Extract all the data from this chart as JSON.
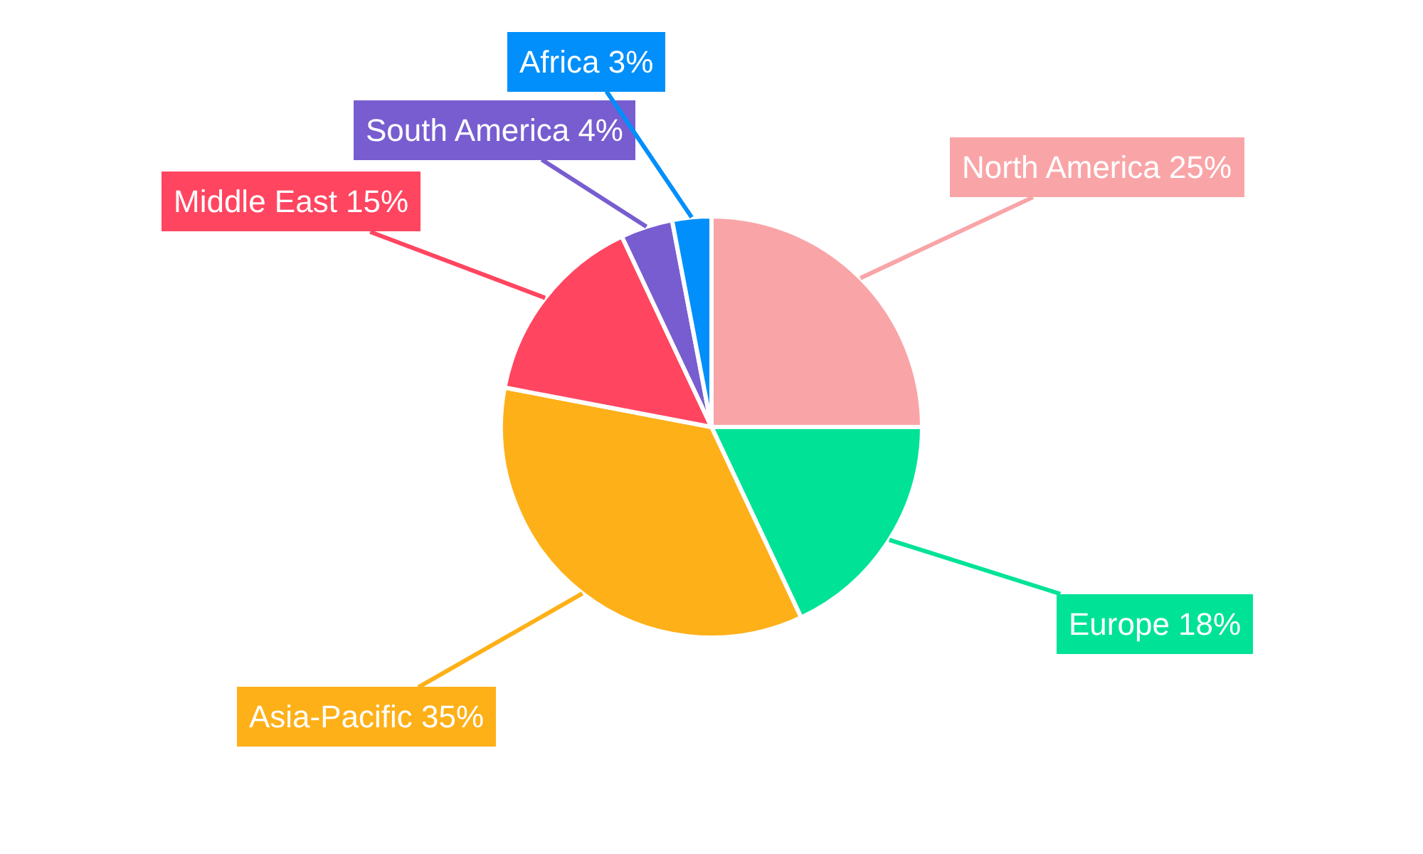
{
  "chart_data": {
    "type": "pie",
    "categories": [
      "North America",
      "Europe",
      "Asia-Pacific",
      "Middle East",
      "South America",
      "Africa"
    ],
    "values": [
      25,
      18,
      35,
      15,
      4,
      3
    ],
    "value_labels": [
      "25%",
      "18%",
      "35%",
      "15%",
      "4%",
      "3%"
    ],
    "colors": [
      "#f9a5a8",
      "#00e396",
      "#feb019",
      "#ff4560",
      "#775dd0",
      "#008ffb"
    ],
    "legend": false
  }
}
